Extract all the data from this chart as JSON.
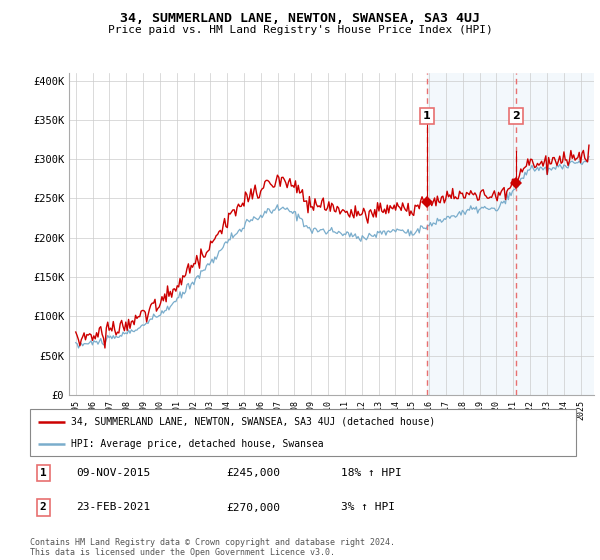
{
  "title": "34, SUMMERLAND LANE, NEWTON, SWANSEA, SA3 4UJ",
  "subtitle": "Price paid vs. HM Land Registry's House Price Index (HPI)",
  "background_color": "#ffffff",
  "grid_color": "#cccccc",
  "red_line_color": "#cc0000",
  "blue_line_color": "#7aadcc",
  "dashed_color": "#e87070",
  "shade_color": "#d0e4f5",
  "legend_label_red": "34, SUMMERLAND LANE, NEWTON, SWANSEA, SA3 4UJ (detached house)",
  "legend_label_blue": "HPI: Average price, detached house, Swansea",
  "transaction1_date": "09-NOV-2015",
  "transaction1_price": "£245,000",
  "transaction1_hpi": "18% ↑ HPI",
  "transaction2_date": "23-FEB-2021",
  "transaction2_price": "£270,000",
  "transaction2_hpi": "3% ↑ HPI",
  "footer": "Contains HM Land Registry data © Crown copyright and database right 2024.\nThis data is licensed under the Open Government Licence v3.0.",
  "ylim": [
    0,
    410000
  ],
  "yticks": [
    0,
    50000,
    100000,
    150000,
    200000,
    250000,
    300000,
    350000,
    400000
  ],
  "ytick_labels": [
    "£0",
    "£50K",
    "£100K",
    "£150K",
    "£200K",
    "£250K",
    "£300K",
    "£350K",
    "£400K"
  ],
  "transaction1_x": 2015.87,
  "transaction1_y": 245000,
  "transaction2_x": 2021.15,
  "transaction2_y": 270000,
  "xlim_left": 1994.6,
  "xlim_right": 2025.8
}
